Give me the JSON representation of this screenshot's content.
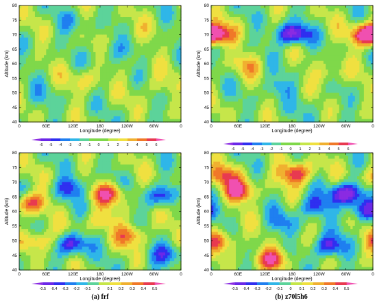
{
  "panels": [
    {
      "caption": "(a) frf",
      "plots": [
        {
          "colorbar_ticks": [
            "-6",
            "-5",
            "-4",
            "-3",
            "-2",
            "-1",
            "0",
            "1",
            "2",
            "3",
            "4",
            "5",
            "6"
          ]
        },
        {
          "colorbar_ticks": [
            "-0.5",
            "-0.4",
            "-0.3",
            "-0.2",
            "-0.1",
            "0",
            "0.1",
            "0.2",
            "0.3",
            "0.4",
            "0.5"
          ]
        }
      ]
    },
    {
      "caption": "(b) z70l5h6",
      "plots": [
        {
          "colorbar_ticks": [
            "-6",
            "-5",
            "-4",
            "-3",
            "-2",
            "-1",
            "0",
            "1",
            "2",
            "3",
            "4",
            "5",
            "6"
          ]
        },
        {
          "colorbar_ticks": [
            "-0.5",
            "-0.4",
            "-0.3",
            "-0.2",
            "-0.1",
            "0",
            "0.1",
            "0.2",
            "0.3",
            "0.4",
            "0.5"
          ]
        }
      ]
    }
  ],
  "colors": {
    "palette": [
      "#8a2be2",
      "#6a28e8",
      "#2f2ff0",
      "#1f7ff0",
      "#2fb6e8",
      "#5cd39a",
      "#7fd84a",
      "#c6e64a",
      "#f0e040",
      "#f0b030",
      "#f07828",
      "#e83a50",
      "#f050b0"
    ]
  },
  "chart_data": [
    {
      "type": "heatmap",
      "xlabel": "Longitude (degree)",
      "ylabel": "Altitude (km)",
      "x_ticks": [
        "0",
        "60E",
        "120E",
        "180",
        "120W",
        "60W",
        "0"
      ],
      "y_ticks": [
        "40",
        "45",
        "50",
        "55",
        "60",
        "65",
        "70",
        "75",
        "80"
      ],
      "xlim": [
        0,
        360
      ],
      "ylim": [
        40,
        80
      ],
      "levels": [
        -6,
        -5,
        -4,
        -3,
        -2,
        -1,
        0,
        1,
        2,
        3,
        4,
        5,
        6
      ],
      "features": [
        {
          "lon": 120,
          "alt": 74,
          "value": -1.5
        },
        {
          "lon": 210,
          "alt": 64,
          "value": -2
        },
        {
          "lon": 150,
          "alt": 55,
          "value": 2
        },
        {
          "lon": 300,
          "alt": 52,
          "value": 1.5
        },
        {
          "lon": 40,
          "alt": 48,
          "value": -1
        },
        {
          "lon": 250,
          "alt": 70,
          "value": 1
        }
      ]
    },
    {
      "type": "heatmap",
      "xlabel": "Longitude (degree)",
      "ylabel": "Altitude (km)",
      "x_ticks": [
        "0",
        "60E",
        "120E",
        "180",
        "120W",
        "60W",
        "0"
      ],
      "y_ticks": [
        "40",
        "45",
        "50",
        "55",
        "60",
        "65",
        "70",
        "75",
        "80"
      ],
      "xlim": [
        0,
        360
      ],
      "ylim": [
        40,
        80
      ],
      "levels": [
        -6,
        -5,
        -4,
        -3,
        -2,
        -1,
        0,
        1,
        2,
        3,
        4,
        5,
        6
      ],
      "features": [
        {
          "lon": 10,
          "alt": 70,
          "value": 5
        },
        {
          "lon": 180,
          "alt": 70,
          "value": -6
        },
        {
          "lon": 345,
          "alt": 70,
          "value": 5
        },
        {
          "lon": 150,
          "alt": 52,
          "value": -2
        },
        {
          "lon": 260,
          "alt": 56,
          "value": 2
        },
        {
          "lon": 80,
          "alt": 60,
          "value": 2
        },
        {
          "lon": 220,
          "alt": 46,
          "value": -1
        }
      ]
    },
    {
      "type": "heatmap",
      "xlabel": "Longitude (degree)",
      "ylabel": "Altitude (km)",
      "x_ticks": [
        "0",
        "60E",
        "120E",
        "180",
        "120W",
        "60W",
        "0"
      ],
      "y_ticks": [
        "40",
        "45",
        "50",
        "55",
        "60",
        "65",
        "70",
        "75",
        "80"
      ],
      "xlim": [
        0,
        360
      ],
      "ylim": [
        40,
        80
      ],
      "levels": [
        -0.5,
        -0.4,
        -0.3,
        -0.2,
        -0.1,
        0,
        0.1,
        0.2,
        0.3,
        0.4,
        0.5
      ],
      "features": [
        {
          "lon": 20,
          "alt": 63,
          "value": 0.4
        },
        {
          "lon": 115,
          "alt": 68,
          "value": -0.3
        },
        {
          "lon": 200,
          "alt": 66,
          "value": 0.35
        },
        {
          "lon": 320,
          "alt": 65,
          "value": -0.35
        },
        {
          "lon": 120,
          "alt": 49,
          "value": -0.4
        },
        {
          "lon": 45,
          "alt": 50,
          "value": 0.3
        },
        {
          "lon": 250,
          "alt": 52,
          "value": 0.3
        },
        {
          "lon": 180,
          "alt": 57,
          "value": 0.2
        },
        {
          "lon": 330,
          "alt": 45,
          "value": -0.3
        }
      ]
    },
    {
      "type": "heatmap",
      "xlabel": "Longitude (degree)",
      "ylabel": "Altitude (km)",
      "x_ticks": [
        "0",
        "60E",
        "120E",
        "180",
        "120W",
        "60W",
        "0"
      ],
      "y_ticks": [
        "40",
        "45",
        "50",
        "55",
        "60",
        "65",
        "70",
        "75",
        "80"
      ],
      "xlim": [
        0,
        360
      ],
      "ylim": [
        40,
        80
      ],
      "levels": [
        -0.5,
        -0.4,
        -0.3,
        -0.2,
        -0.1,
        0,
        0.1,
        0.2,
        0.3,
        0.4,
        0.5
      ],
      "features": [
        {
          "lon": 20,
          "alt": 72,
          "value": 0.3
        },
        {
          "lon": 190,
          "alt": 73,
          "value": 0.45
        },
        {
          "lon": 60,
          "alt": 67,
          "value": 0.45
        },
        {
          "lon": 300,
          "alt": 66,
          "value": -0.5
        },
        {
          "lon": 230,
          "alt": 62,
          "value": -0.3
        },
        {
          "lon": 140,
          "alt": 44,
          "value": 0.4
        },
        {
          "lon": 260,
          "alt": 48,
          "value": -0.4
        },
        {
          "lon": 20,
          "alt": 50,
          "value": 0.35
        },
        {
          "lon": 340,
          "alt": 60,
          "value": -0.35
        },
        {
          "lon": 160,
          "alt": 56,
          "value": -0.2
        }
      ]
    }
  ]
}
